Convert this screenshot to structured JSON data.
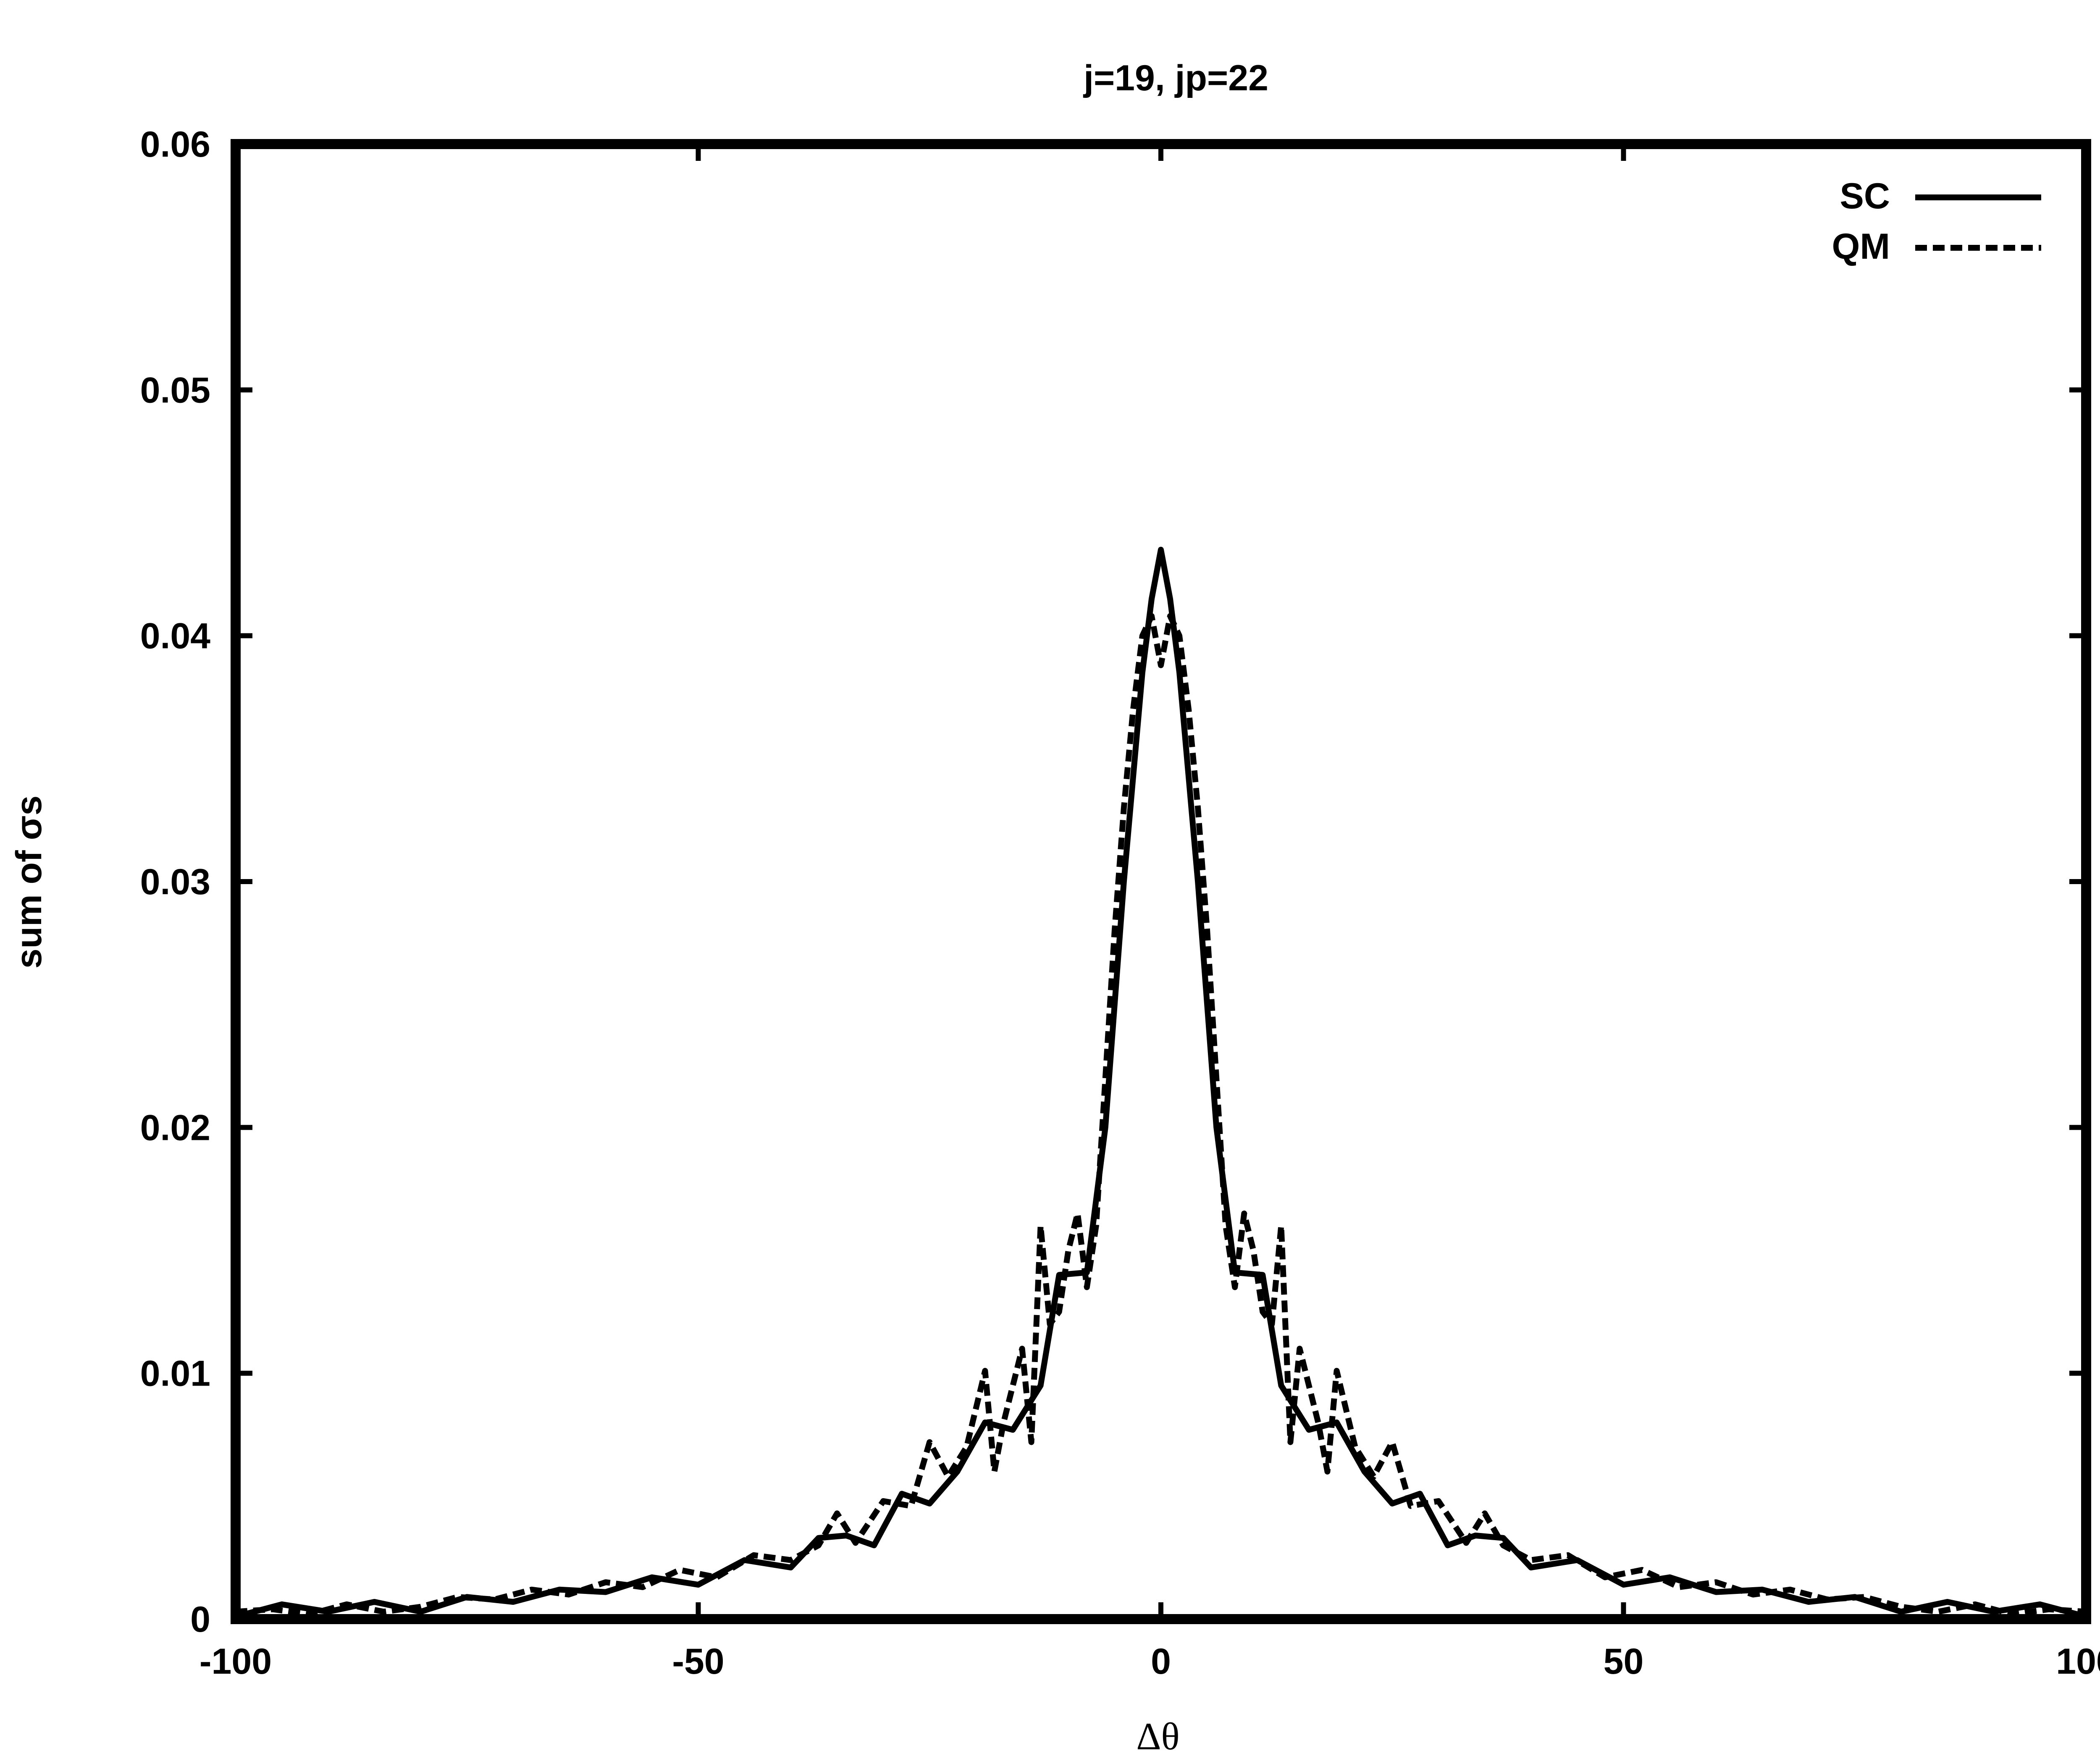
{
  "chart_data": {
    "type": "line",
    "title": "j=19, jp=22",
    "xlabel": "Δθ",
    "ylabel": "sum of σs",
    "xlim": [
      -100,
      100
    ],
    "ylim": [
      0,
      0.06
    ],
    "x_ticks": [
      "-100",
      "-50",
      "0",
      "50",
      "100"
    ],
    "x_tick_values": [
      -100,
      -50,
      0,
      50,
      100
    ],
    "y_ticks": [
      "0",
      "0.01",
      "0.02",
      "0.03",
      "0.04",
      "0.05",
      "0.06"
    ],
    "y_tick_values": [
      0,
      0.01,
      0.02,
      0.03,
      0.04,
      0.05,
      0.06
    ],
    "grid": false,
    "legend_position": "top-right",
    "series": [
      {
        "name": "SC",
        "style": "solid",
        "color": "#000000",
        "x": [
          -100,
          -95,
          -90,
          -85,
          -80,
          -75,
          -70,
          -65,
          -60,
          -55,
          -50,
          -45,
          -40,
          -37,
          -34,
          -31,
          -28,
          -25,
          -22,
          -19,
          -16,
          -13,
          -11,
          -8,
          -6,
          -4,
          -2,
          -1,
          0,
          1,
          2,
          4,
          6,
          8,
          11,
          13,
          16,
          19,
          22,
          25,
          28,
          31,
          34,
          37,
          40,
          45,
          50,
          55,
          60,
          65,
          70,
          75,
          80,
          85,
          90,
          95,
          100
        ],
        "y": [
          0.0001,
          0.0006,
          0.0003,
          0.0007,
          0.0003,
          0.0009,
          0.0007,
          0.0012,
          0.0011,
          0.0017,
          0.0014,
          0.0024,
          0.0021,
          0.0033,
          0.0034,
          0.003,
          0.0051,
          0.0047,
          0.006,
          0.008,
          0.0077,
          0.0095,
          0.014,
          0.0141,
          0.02,
          0.03,
          0.0385,
          0.0415,
          0.0435,
          0.0415,
          0.0385,
          0.03,
          0.02,
          0.0141,
          0.014,
          0.0095,
          0.0077,
          0.008,
          0.006,
          0.0047,
          0.0051,
          0.003,
          0.0034,
          0.0033,
          0.0021,
          0.0024,
          0.0014,
          0.0017,
          0.0011,
          0.0012,
          0.0007,
          0.0009,
          0.0003,
          0.0007,
          0.0003,
          0.0006,
          0.0001
        ]
      },
      {
        "name": "QM",
        "style": "dashed",
        "color": "#000000",
        "x": [
          -100,
          -96,
          -92,
          -88,
          -84,
          -80,
          -76,
          -72,
          -68,
          -64,
          -60,
          -56,
          -52,
          -48,
          -44,
          -40,
          -37,
          -35,
          -33,
          -30,
          -27,
          -25,
          -23,
          -21,
          -19,
          -18,
          -17,
          -15,
          -14,
          -13,
          -12,
          -11,
          -10,
          -9,
          -8,
          -7,
          -6,
          -5,
          -4,
          -3,
          -2,
          -1,
          0,
          1,
          2,
          3,
          4,
          5,
          6,
          7,
          8,
          9,
          10,
          11,
          12,
          13,
          14,
          15,
          17,
          18,
          19,
          21,
          23,
          25,
          27,
          30,
          33,
          35,
          37,
          40,
          44,
          48,
          52,
          56,
          60,
          64,
          68,
          72,
          76,
          80,
          84,
          88,
          92,
          96,
          100
        ],
        "y": [
          0.0003,
          0.0004,
          0.0002,
          0.0006,
          0.0003,
          0.0005,
          0.0009,
          0.0008,
          0.0012,
          0.001,
          0.0015,
          0.0013,
          0.002,
          0.0017,
          0.0026,
          0.0024,
          0.003,
          0.0043,
          0.0031,
          0.0048,
          0.0046,
          0.0072,
          0.0058,
          0.007,
          0.0101,
          0.006,
          0.008,
          0.011,
          0.0072,
          0.016,
          0.012,
          0.0125,
          0.015,
          0.0165,
          0.0135,
          0.016,
          0.022,
          0.028,
          0.033,
          0.037,
          0.04,
          0.0408,
          0.0388,
          0.0408,
          0.04,
          0.037,
          0.033,
          0.028,
          0.022,
          0.016,
          0.0135,
          0.0165,
          0.015,
          0.0125,
          0.012,
          0.016,
          0.0072,
          0.011,
          0.008,
          0.006,
          0.0101,
          0.007,
          0.0058,
          0.0072,
          0.0046,
          0.0048,
          0.0031,
          0.0043,
          0.003,
          0.0024,
          0.0026,
          0.0017,
          0.002,
          0.0013,
          0.0015,
          0.001,
          0.0012,
          0.0008,
          0.0009,
          0.0005,
          0.0003,
          0.0006,
          0.0002,
          0.0004,
          0.0003
        ]
      }
    ]
  }
}
